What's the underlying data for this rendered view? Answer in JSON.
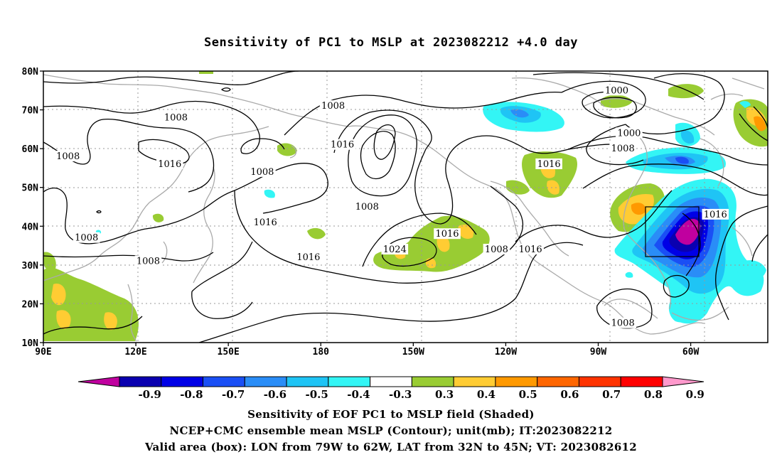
{
  "title": "Sensitivity of PC1 to MSLP at 2023082212 +4.0 day",
  "map": {
    "lat_labels": [
      "80N",
      "70N",
      "60N",
      "50N",
      "40N",
      "30N",
      "20N",
      "10N"
    ],
    "lon_labels": [
      "90E",
      "120E",
      "150E",
      "180",
      "150W",
      "120W",
      "90W",
      "60W"
    ],
    "contour_labels": [
      {
        "text": "1008",
        "lon": "98E",
        "lat": "58N"
      },
      {
        "text": "1008",
        "lon": "133E",
        "lat": "68N"
      },
      {
        "text": "1016",
        "lon": "131E",
        "lat": "56N"
      },
      {
        "text": "1008",
        "lon": "161E",
        "lat": "54N"
      },
      {
        "text": "1008",
        "lon": "176W",
        "lat": "71N"
      },
      {
        "text": "1016",
        "lon": "173W",
        "lat": "61N"
      },
      {
        "text": "1008",
        "lon": "165W",
        "lat": "45N"
      },
      {
        "text": "1016",
        "lon": "162E",
        "lat": "41N"
      },
      {
        "text": "1008",
        "lon": "104E",
        "lat": "37N"
      },
      {
        "text": "1008",
        "lon": "124E",
        "lat": "31N"
      },
      {
        "text": "1016",
        "lon": "176E",
        "lat": "32N"
      },
      {
        "text": "1024",
        "lon": "156W",
        "lat": "34N"
      },
      {
        "text": "1016",
        "lon": "139W",
        "lat": "38N"
      },
      {
        "text": "1008",
        "lon": "123W",
        "lat": "34N"
      },
      {
        "text": "1016",
        "lon": "112W",
        "lat": "34N"
      },
      {
        "text": "1016",
        "lon": "106W",
        "lat": "56N"
      },
      {
        "text": "1000",
        "lon": "84W",
        "lat": "75N"
      },
      {
        "text": "1000",
        "lon": "80W",
        "lat": "64N"
      },
      {
        "text": "1008",
        "lon": "82W",
        "lat": "60N"
      },
      {
        "text": "1016",
        "lon": "52W",
        "lat": "43N"
      },
      {
        "text": "1008",
        "lon": "82W",
        "lat": "15N"
      }
    ]
  },
  "colorbar": {
    "labels": [
      "-0.9",
      "-0.8",
      "-0.7",
      "-0.6",
      "-0.5",
      "-0.4",
      "-0.3",
      "0.3",
      "0.4",
      "0.5",
      "0.6",
      "0.7",
      "0.8",
      "0.9"
    ],
    "colors": [
      "#c0009f",
      "#0a00b0",
      "#0000e6",
      "#1a4ff5",
      "#2a8df7",
      "#1fc4f5",
      "#33f5f5",
      "#ffffff",
      "#99cc33",
      "#ffcc33",
      "#ff9900",
      "#ff6600",
      "#ff3300",
      "#ff0000",
      "#ff99cc"
    ]
  },
  "captions": {
    "line1": "Sensitivity of EOF PC1 to MSLP field (Shaded)",
    "line2": "NCEP+CMC ensemble mean MSLP (Contour); unit(mb); IT:2023082212",
    "line3": "Valid area (box): LON from 79W to 62W, LAT from 32N to 45N; VT: 2023082612"
  }
}
